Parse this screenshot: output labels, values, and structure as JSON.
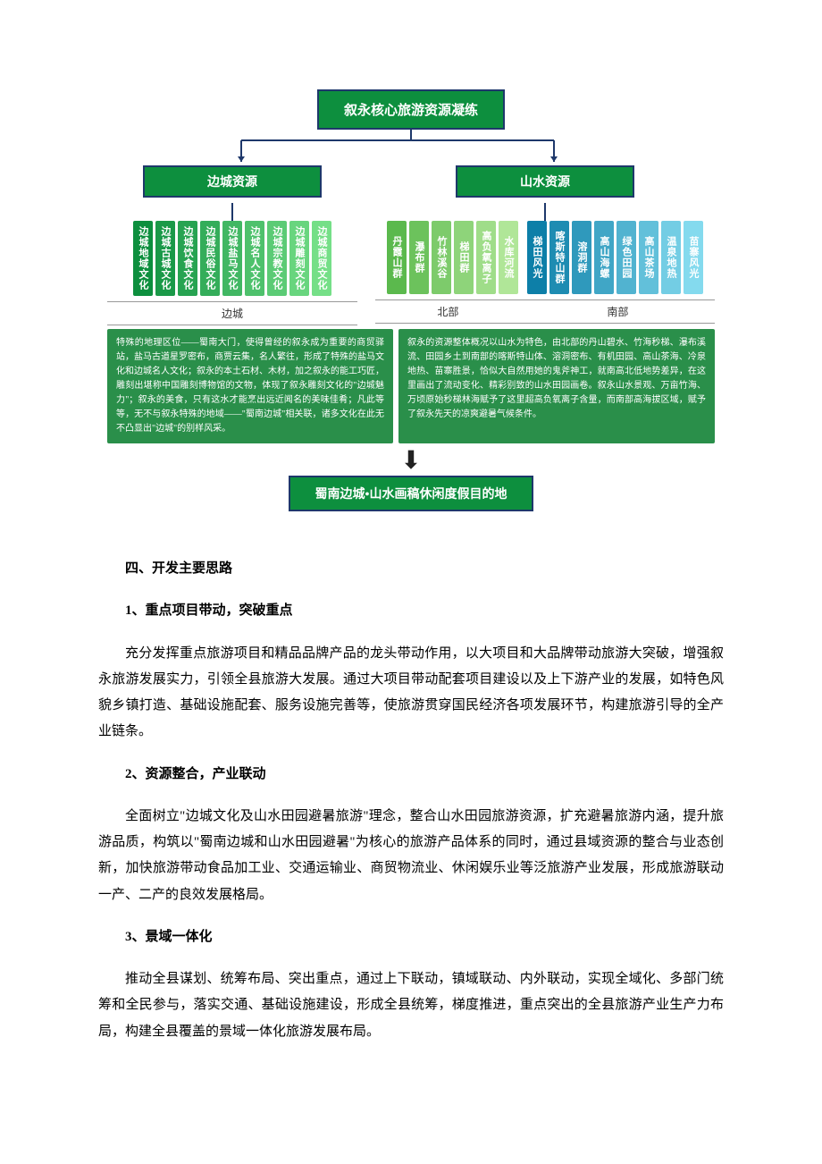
{
  "diagram": {
    "title": "叙永核心旅游资源凝练",
    "left_branch": {
      "title": "边城资源",
      "items": [
        {
          "label": "边城地域文化",
          "color": "#0d8f3e"
        },
        {
          "label": "边城古城文化",
          "color": "#1a9948"
        },
        {
          "label": "边城饮食文化",
          "color": "#27a351"
        },
        {
          "label": "边城民俗文化",
          "color": "#34ad5a"
        },
        {
          "label": "边城盐马文化",
          "color": "#41b763"
        },
        {
          "label": "边城名人文化",
          "color": "#4ec16c"
        },
        {
          "label": "边城宗教文化",
          "color": "#5bcb75"
        },
        {
          "label": "边城雕刻文化",
          "color": "#68d57e"
        },
        {
          "label": "边城商贸文化",
          "color": "#75df87"
        }
      ],
      "sub_label": "边城"
    },
    "right_branch": {
      "title": "山水资源",
      "north_items": [
        {
          "label": "丹霞山群",
          "color": "#5bb94d"
        },
        {
          "label": "瀑布群",
          "color": "#6cc25c"
        },
        {
          "label": "竹林溪谷",
          "color": "#7dcb6b"
        },
        {
          "label": "梯田群",
          "color": "#8ed47a"
        },
        {
          "label": "高负氧离子",
          "color": "#9fdd89"
        },
        {
          "label": "水库河流",
          "color": "#b0e698"
        }
      ],
      "south_items": [
        {
          "label": "梯田风光",
          "color": "#0d7fa8"
        },
        {
          "label": "喀斯特山群",
          "color": "#1e8cb2"
        },
        {
          "label": "溶洞群",
          "color": "#2f99bc"
        },
        {
          "label": "高山海螺",
          "color": "#40a6c6"
        },
        {
          "label": "绿色田园",
          "color": "#51b3d0"
        },
        {
          "label": "高山茶场",
          "color": "#62c0da"
        },
        {
          "label": "温泉地热",
          "color": "#73cde4"
        },
        {
          "label": "苗寨风光",
          "color": "#84daee"
        }
      ],
      "north_label": "北部",
      "south_label": "南部"
    },
    "left_desc": "特殊的地理区位——蜀南大门，使得曾经的叙永成为重要的商贸驿站，盐马古道星罗密布，商贾云集，名人繁往，形成了特殊的盐马文化和边城名人文化；叙永的本土石材、木材，加之叙永的能工巧匠，雕刻出堪称中国雕刻博物馆的文物，体现了叙永雕刻文化的\"边城魅力\"；叙永的美食，只有这水才能烹出远近闻名的美味佳肴；凡此等等，无不与叙永特殊的地域——\"蜀南边城\"相关联，诸多文化在此无不凸显出\"边城\"的别样风采。",
    "right_desc": "叙永的资源整体概况以山水为特色，由北部的丹山碧水、竹海秒梯、瀑布溪流、田园乡土到南部的喀斯特山体、溶洞密布、有机田园、高山茶海、冷泉地热、苗寨胜景，恰似大自然用她的鬼斧神工，就南高北低地势差异，在这里画出了流动变化、精彩别致的山水田园画卷。叙永山水景观、万亩竹海、万顷原始秒梯林海赋予了这里超高负氧离子含量，而南部高海拔区域，赋予了叙永先天的凉爽避暑气候条件。",
    "bottom": "蜀南边城•山水画稿休闲度假目的地"
  },
  "doc": {
    "heading4": "四、开发主要思路",
    "s1_title": "1、重点项目带动，突破重点",
    "s1_body": "充分发挥重点旅游项目和精品品牌产品的龙头带动作用，以大项目和大品牌带动旅游大突破，增强叙永旅游发展实力，引领全县旅游大发展。通过大项目带动配套项目建设以及上下游产业的发展，如特色风貌乡镇打造、基础设施配套、服务设施完善等，使旅游贯穿国民经济各项发展环节，构建旅游引导的全产业链条。",
    "s2_title": "2、资源整合，产业联动",
    "s2_body": "全面树立\"边城文化及山水田园避暑旅游\"理念，整合山水田园旅游资源，扩充避暑旅游内涵，提升旅游品质，构筑以\"蜀南边城和山水田园避暑\"为核心的旅游产品体系的同时，通过县域资源的整合与业态创新，加快旅游带动食品加工业、交通运输业、商贸物流业、休闲娱乐业等泛旅游产业发展，形成旅游联动一产、二产的良效发展格局。",
    "s3_title": "3、景域一体化",
    "s3_body": "推动全县谋划、统筹布局、突出重点，通过上下联动，镇域联动、内外联动，实现全域化、多部门统筹和全民参与，落实交通、基础设施建设，形成全县统筹，梯度推进，重点突出的全县旅游产业生产力布局，构建全县覆盖的景域一体化旅游发展布局。"
  }
}
